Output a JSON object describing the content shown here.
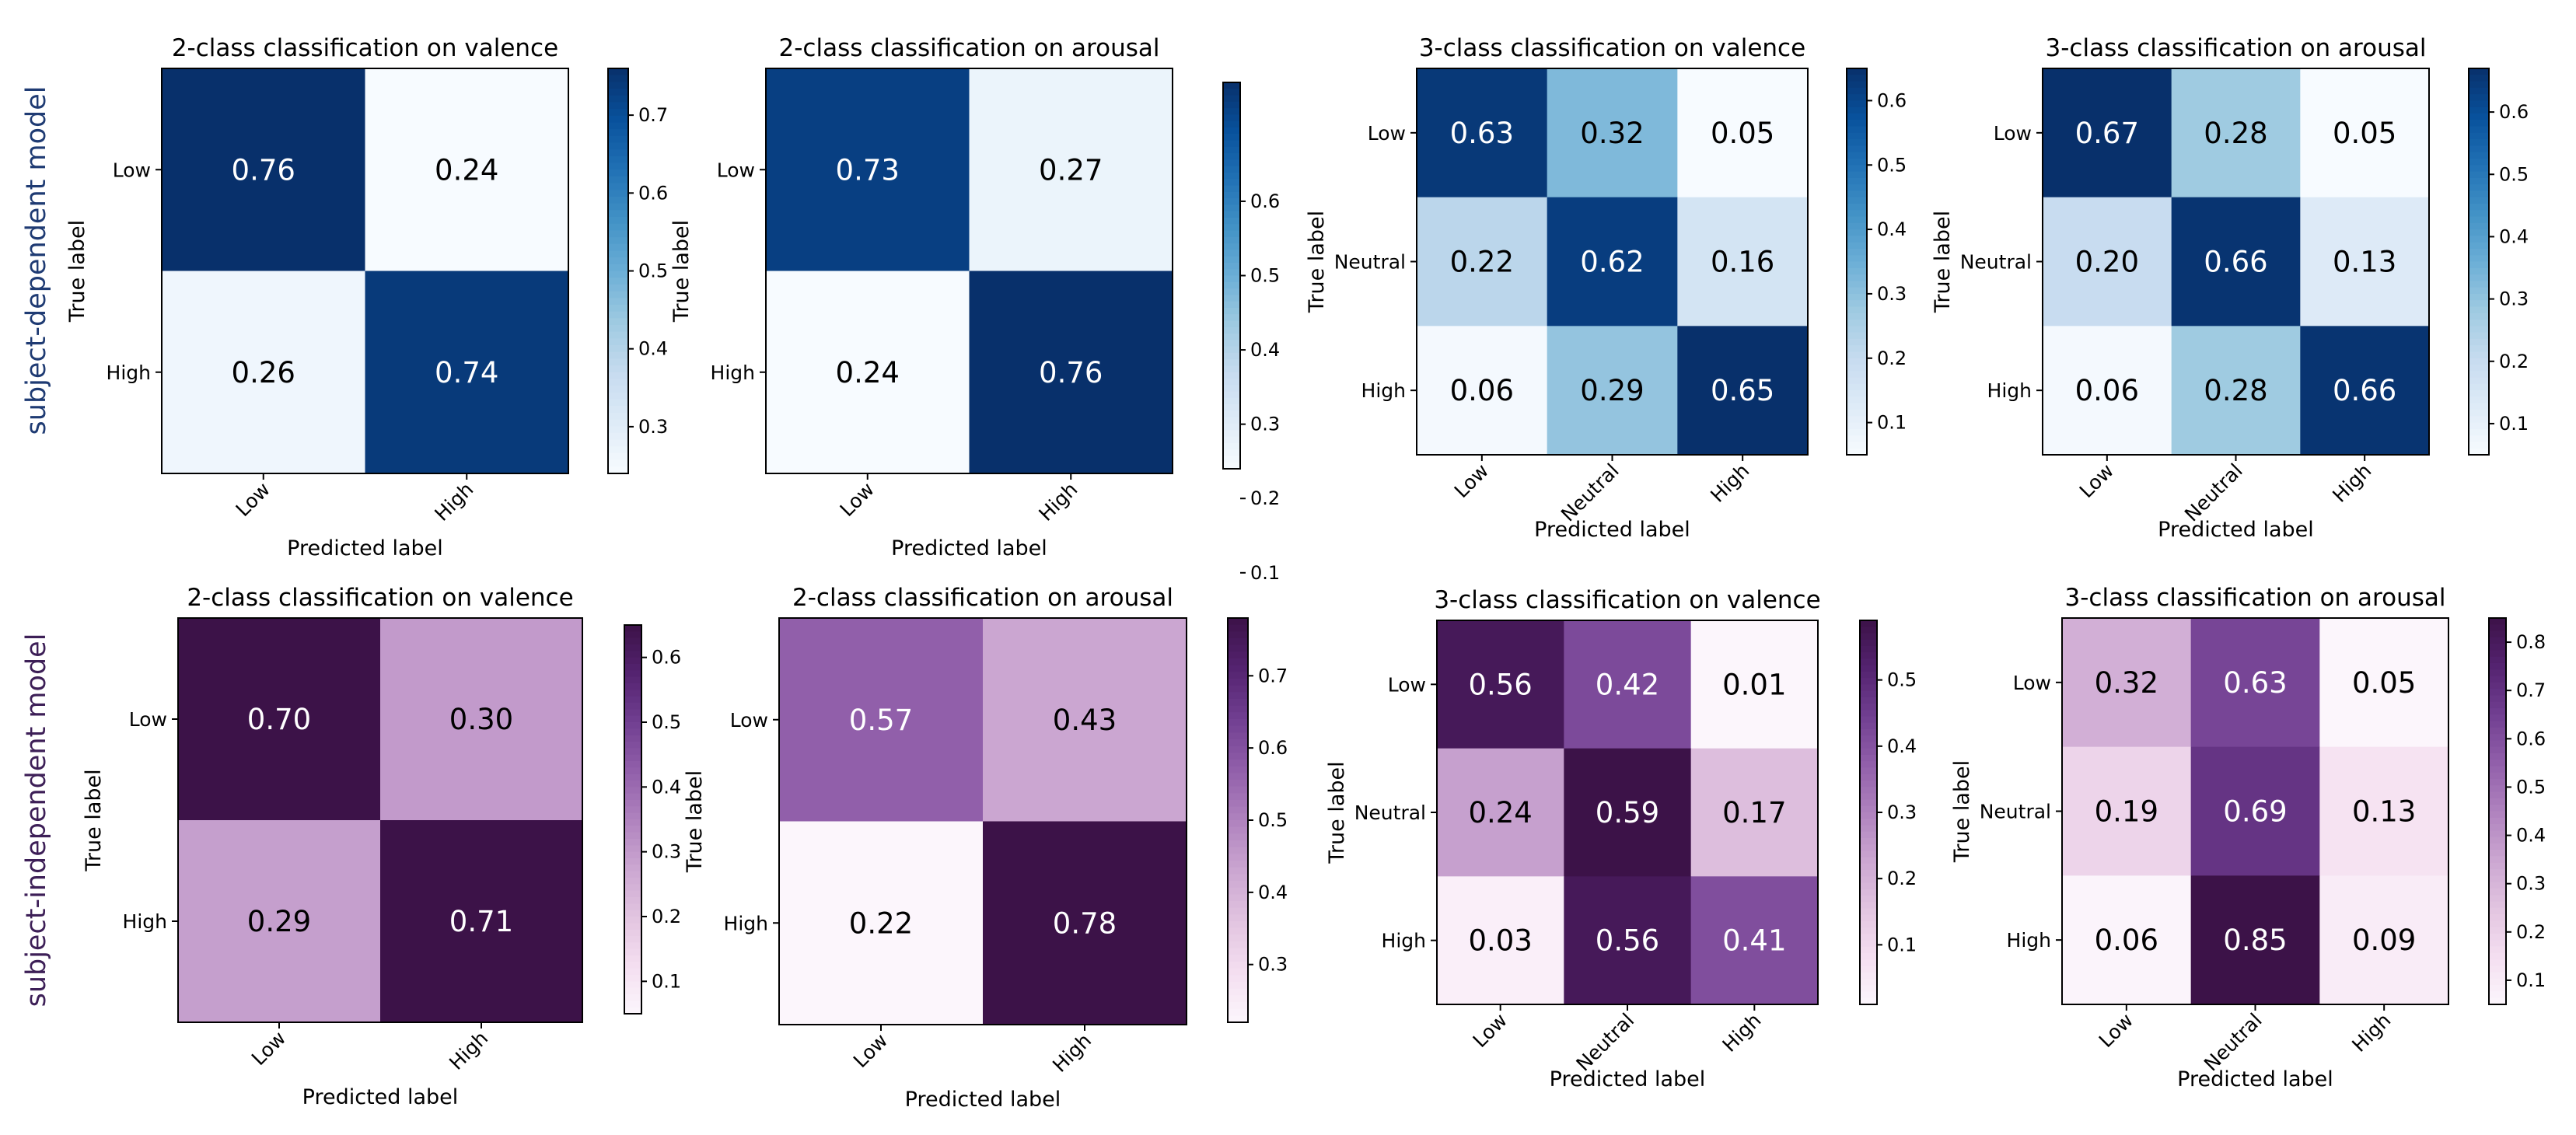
{
  "figure": {
    "row_labels": [
      {
        "text": "subject-dependent model",
        "color": "#1f3b73"
      },
      {
        "text": "subject-independent model",
        "color": "#3d1f57"
      }
    ]
  },
  "chart_data": [
    {
      "type": "heatmap",
      "row": 0,
      "title": "2-class classification on valence",
      "xlabel": "Predicted label",
      "ylabel": "True label",
      "categories": [
        "Low",
        "High"
      ],
      "values": [
        [
          0.76,
          0.24
        ],
        [
          0.26,
          0.74
        ]
      ],
      "colormap": "blues",
      "color_range": [
        0.24,
        0.76
      ],
      "colorbar_ticks": [
        0.3,
        0.4,
        0.5,
        0.6,
        0.7
      ]
    },
    {
      "type": "heatmap",
      "row": 0,
      "title": "2-class classification on arousal",
      "xlabel": "Predicted label",
      "ylabel": "True label",
      "categories": [
        "Low",
        "High"
      ],
      "values": [
        [
          0.73,
          0.27
        ],
        [
          0.24,
          0.76
        ]
      ],
      "colormap": "blues",
      "color_range": [
        0.24,
        0.76
      ],
      "colorbar_ticks": [
        0.1,
        0.2,
        0.3,
        0.4,
        0.5,
        0.6
      ]
    },
    {
      "type": "heatmap",
      "row": 0,
      "title": "3-class classification on valence",
      "xlabel": "Predicted label",
      "ylabel": "True label",
      "categories": [
        "Low",
        "Neutral",
        "High"
      ],
      "values": [
        [
          0.63,
          0.32,
          0.05
        ],
        [
          0.22,
          0.62,
          0.16
        ],
        [
          0.06,
          0.29,
          0.65
        ]
      ],
      "colormap": "blues",
      "color_range": [
        0.05,
        0.65
      ],
      "colorbar_ticks": [
        0.1,
        0.2,
        0.3,
        0.4,
        0.5,
        0.6
      ]
    },
    {
      "type": "heatmap",
      "row": 0,
      "title": "3-class classification on arousal",
      "xlabel": "Predicted label",
      "ylabel": "True label",
      "categories": [
        "Low",
        "Neutral",
        "High"
      ],
      "values": [
        [
          0.67,
          0.28,
          0.05
        ],
        [
          0.2,
          0.66,
          0.13
        ],
        [
          0.06,
          0.28,
          0.66
        ]
      ],
      "colormap": "blues",
      "color_range": [
        0.05,
        0.67
      ],
      "colorbar_ticks": [
        0.1,
        0.2,
        0.3,
        0.4,
        0.5,
        0.6
      ]
    },
    {
      "type": "heatmap",
      "row": 1,
      "title": "2-class classification on valence",
      "xlabel": "Predicted label",
      "ylabel": "True label",
      "categories": [
        "Low",
        "High"
      ],
      "values": [
        [
          0.7,
          0.3
        ],
        [
          0.29,
          0.71
        ]
      ],
      "colormap": "purples",
      "color_range": [
        0.05,
        0.65
      ],
      "colorbar_ticks": [
        0.1,
        0.2,
        0.3,
        0.4,
        0.5,
        0.6
      ]
    },
    {
      "type": "heatmap",
      "row": 1,
      "title": "2-class classification on arousal",
      "xlabel": "Predicted label",
      "ylabel": "True label",
      "categories": [
        "Low",
        "High"
      ],
      "values": [
        [
          0.57,
          0.43
        ],
        [
          0.22,
          0.78
        ]
      ],
      "colormap": "purples",
      "color_range": [
        0.22,
        0.78
      ],
      "colorbar_ticks": [
        0.3,
        0.4,
        0.5,
        0.6,
        0.7
      ]
    },
    {
      "type": "heatmap",
      "row": 1,
      "title": "3-class classification on valence",
      "xlabel": "Predicted label",
      "ylabel": "True label",
      "categories": [
        "Low",
        "Neutral",
        "High"
      ],
      "values": [
        [
          0.56,
          0.42,
          0.01
        ],
        [
          0.24,
          0.59,
          0.17
        ],
        [
          0.03,
          0.56,
          0.41
        ]
      ],
      "colormap": "purples",
      "color_range": [
        0.01,
        0.59
      ],
      "colorbar_ticks": [
        0.1,
        0.2,
        0.3,
        0.4,
        0.5
      ]
    },
    {
      "type": "heatmap",
      "row": 1,
      "title": "3-class classification on arousal",
      "xlabel": "Predicted label",
      "ylabel": "True label",
      "categories": [
        "Low",
        "Neutral",
        "High"
      ],
      "values": [
        [
          0.32,
          0.63,
          0.05
        ],
        [
          0.19,
          0.69,
          0.13
        ],
        [
          0.06,
          0.85,
          0.09
        ]
      ],
      "colormap": "purples",
      "color_range": [
        0.05,
        0.85
      ],
      "colorbar_ticks": [
        0.1,
        0.2,
        0.3,
        0.4,
        0.5,
        0.6,
        0.7,
        0.8
      ]
    }
  ]
}
